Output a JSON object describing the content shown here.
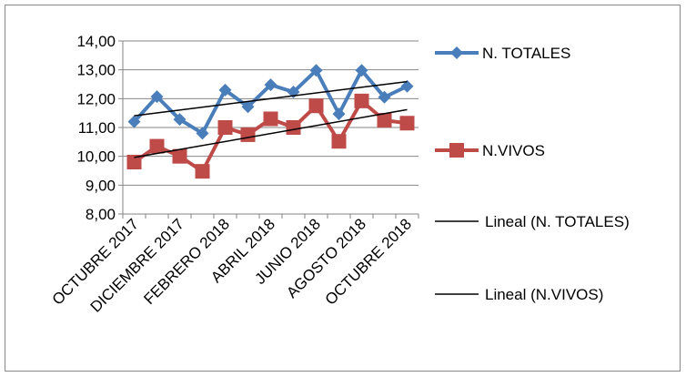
{
  "chart_data": {
    "type": "line",
    "categories": [
      "OCTUBRE 2017",
      null,
      "DICIEMBRE 2017",
      null,
      "FEBRERO 2018",
      null,
      "ABRIL 2018",
      null,
      "JUNIO 2018",
      null,
      "AGOSTO 2018",
      null,
      "OCTUBRE 2018"
    ],
    "series": [
      {
        "name": "N. TOTALES",
        "color": "#4a7ebb",
        "marker": "diamond",
        "values": [
          11.2,
          12.07,
          11.28,
          10.8,
          12.3,
          11.72,
          12.48,
          12.23,
          12.98,
          11.47,
          12.98,
          12.05,
          12.43
        ],
        "trendline": {
          "name": "Lineal (N. TOTALES)",
          "color": "#000000"
        }
      },
      {
        "name": "N.VIVOS",
        "color": "#be4b48",
        "marker": "square",
        "values": [
          9.8,
          10.35,
          10.0,
          9.48,
          11.0,
          10.75,
          11.3,
          11.0,
          11.75,
          10.52,
          11.92,
          11.25,
          11.15
        ],
        "trendline": {
          "name": "Lineal (N.VIVOS)",
          "color": "#000000"
        }
      }
    ],
    "ylim": [
      8,
      14
    ],
    "yticks": [
      {
        "value": 8,
        "label": "8,00"
      },
      {
        "value": 9,
        "label": "9,00"
      },
      {
        "value": 10,
        "label": "10,00"
      },
      {
        "value": 11,
        "label": "11,00"
      },
      {
        "value": 12,
        "label": "12,00"
      },
      {
        "value": 13,
        "label": "13,00"
      },
      {
        "value": 14,
        "label": "14,00"
      }
    ],
    "grid": true,
    "legend": "right"
  }
}
